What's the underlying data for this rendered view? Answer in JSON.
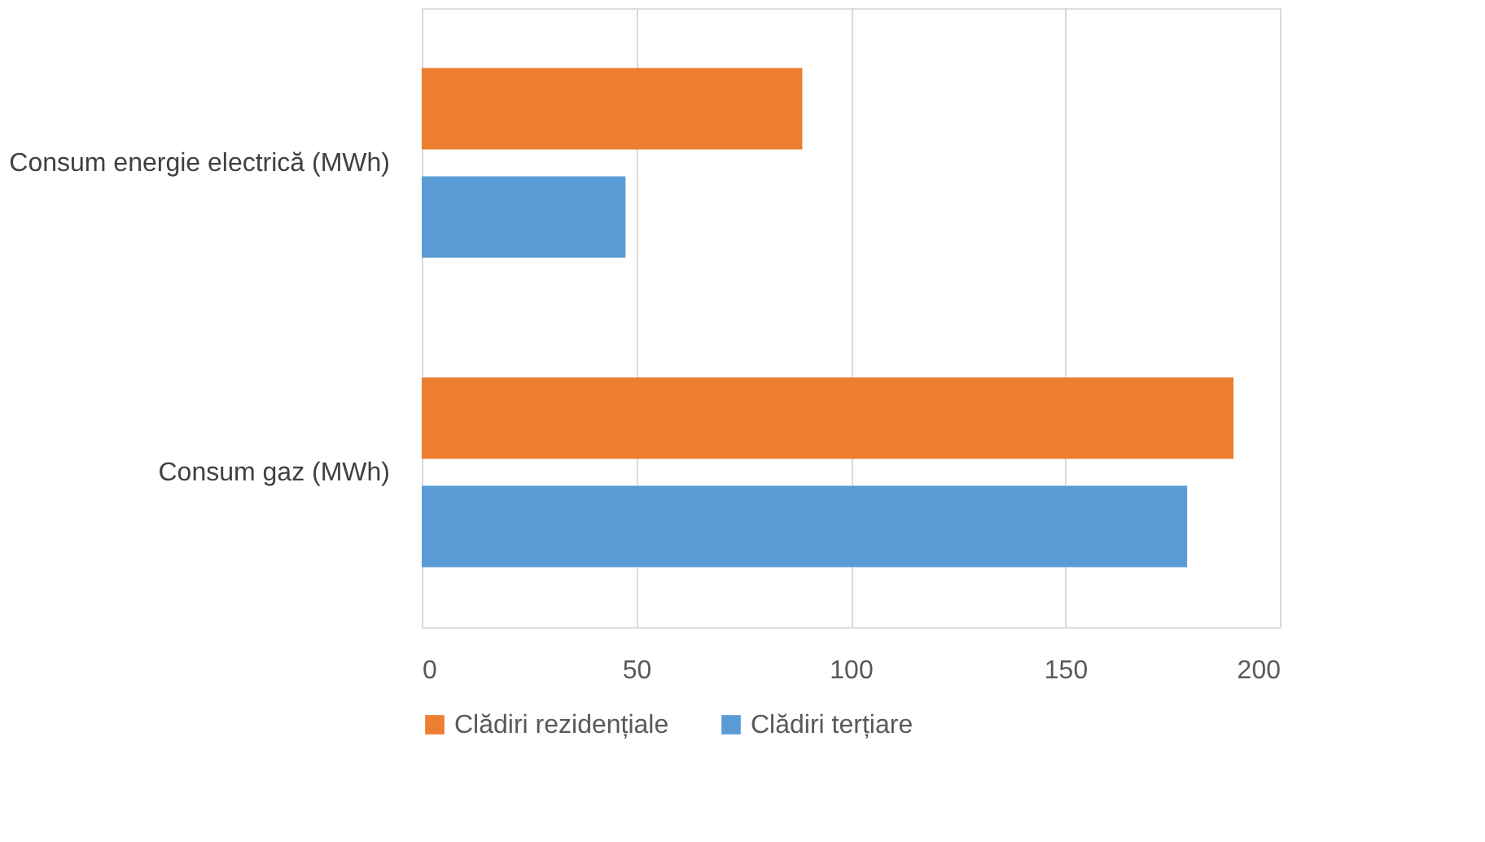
{
  "chart_data": {
    "type": "bar",
    "orientation": "horizontal",
    "categories": [
      "Consum energie electrică (MWh)",
      "Consum gaz  (MWh)"
    ],
    "series": [
      {
        "name": "Clădiri rezidențiale",
        "color": "#ed7d31",
        "values": [
          88.7,
          189.2
        ]
      },
      {
        "name": "Clădiri terțiare",
        "color": "#5b9bd5",
        "values": [
          47.5,
          178.4
        ]
      }
    ],
    "xlim": [
      0,
      200
    ],
    "xticks": [
      0,
      50,
      100,
      150,
      200
    ],
    "grid": "x",
    "legend": "bottom"
  }
}
